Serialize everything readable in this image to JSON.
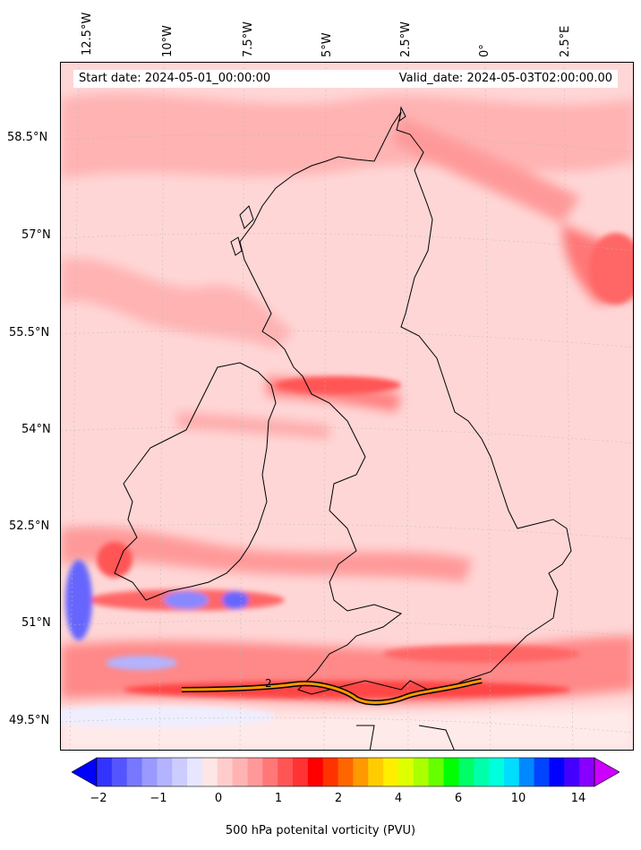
{
  "header": {
    "start_date": "Start date: 2024-05-01_00:00:00",
    "valid_date": "Valid_date: 2024-05-03T02:00:00.00"
  },
  "axes": {
    "lon_labels": [
      "12.5°W",
      "10°W",
      "7.5°W",
      "5°W",
      "2.5°W",
      "0°",
      "2.5°E"
    ],
    "lat_labels": [
      "58.5°N",
      "57°N",
      "55.5°N",
      "54°N",
      "52.5°N",
      "51°N",
      "49.5°N"
    ]
  },
  "colorbar": {
    "label": "500 hPa potenital vorticity (PVU)",
    "ticks": [
      "−2",
      "−1",
      "0",
      "1",
      "2",
      "4",
      "6",
      "10",
      "14"
    ],
    "colors": [
      "#0000ff",
      "#3333ff",
      "#5555ff",
      "#7777ff",
      "#9999ff",
      "#b3b3ff",
      "#ccccff",
      "#e6e6ff",
      "#ffe6e6",
      "#ffcccc",
      "#ffb3b3",
      "#ff9999",
      "#ff7777",
      "#ff5555",
      "#ff3333",
      "#ff0000",
      "#ff3300",
      "#ff6600",
      "#ff9900",
      "#ffcc00",
      "#ffee00",
      "#ddff00",
      "#aaff00",
      "#66ff00",
      "#00ff00",
      "#00ff66",
      "#00ffaa",
      "#00ffdd",
      "#00ddff",
      "#0088ff",
      "#0044ff",
      "#0000ff",
      "#4400ff",
      "#8800ff",
      "#cc00ff"
    ]
  },
  "contour_label": "2",
  "map": {
    "background_color": "#ffe6e6",
    "coastline_color": "#000000"
  }
}
